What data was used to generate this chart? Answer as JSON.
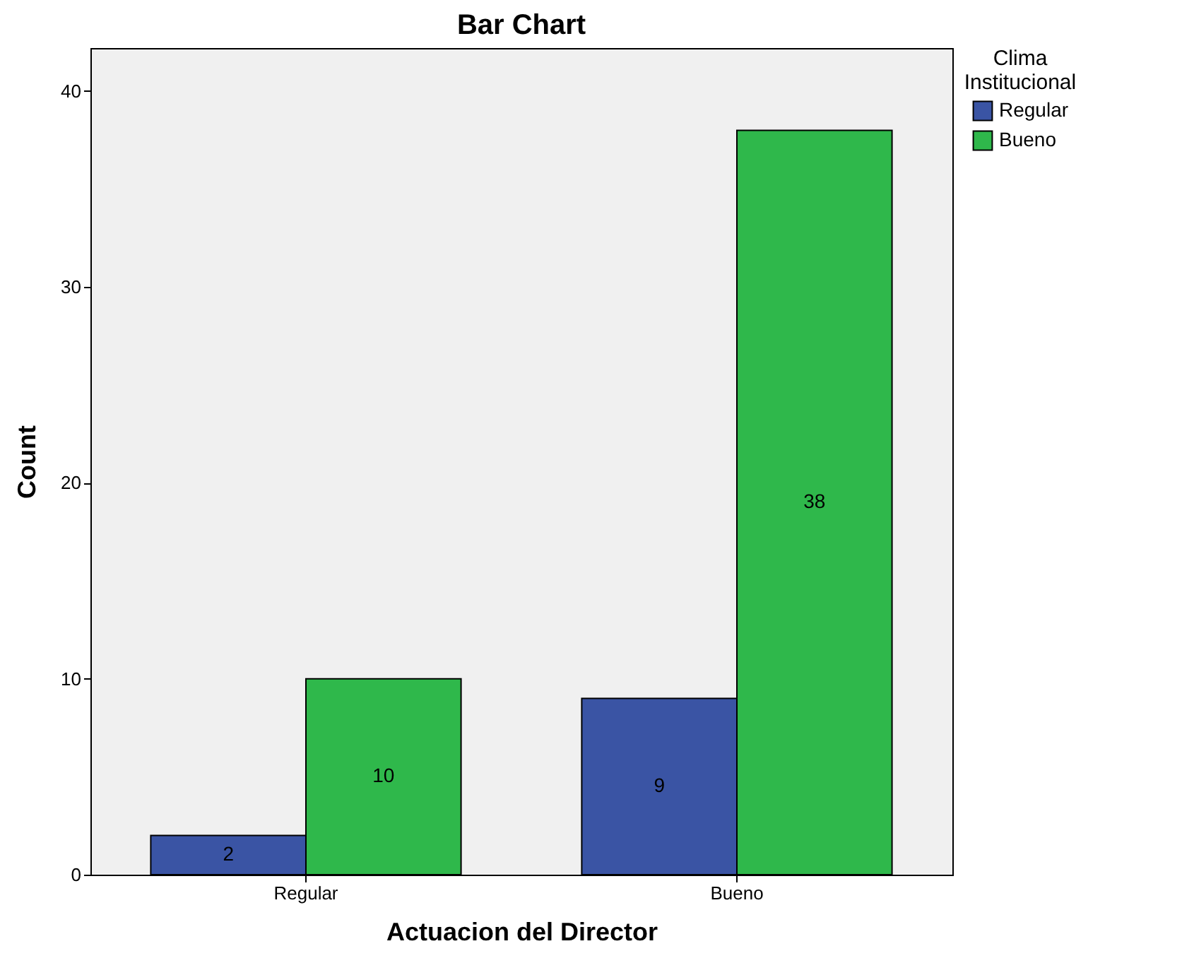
{
  "chart_data": {
    "type": "bar",
    "title": "Bar Chart",
    "xlabel": "Actuacion del Director",
    "ylabel": "Count",
    "legend_title": "Clima Institucional",
    "categories": [
      "Regular",
      "Bueno"
    ],
    "series": [
      {
        "name": "Regular",
        "color": "#3a54a4",
        "values": [
          2,
          9
        ]
      },
      {
        "name": "Bueno",
        "color": "#2fb84b",
        "values": [
          10,
          38
        ]
      }
    ],
    "ylim": [
      0,
      42.2
    ],
    "yticks": [
      0,
      10,
      20,
      30,
      40
    ],
    "grid": false,
    "legend": "top right",
    "data_labels": true
  }
}
